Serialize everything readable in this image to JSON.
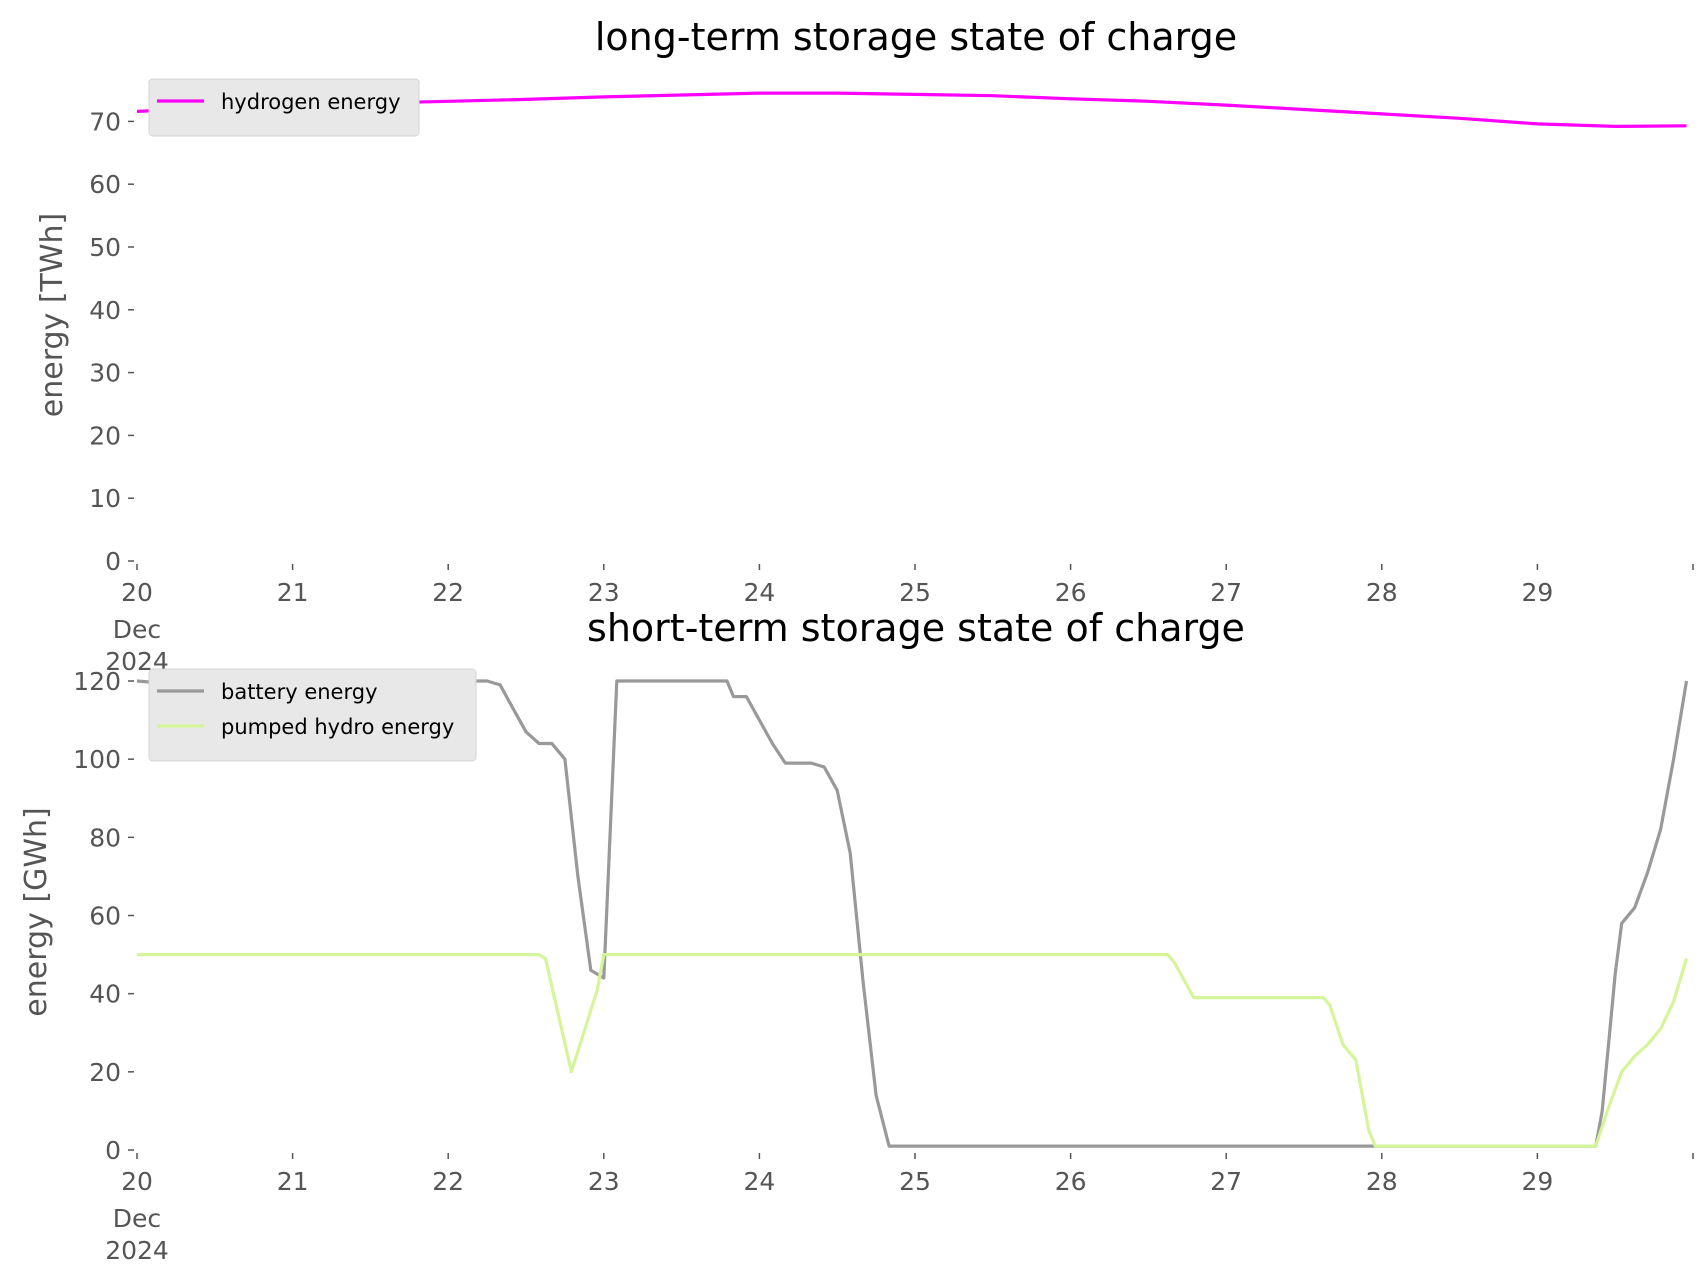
{
  "chart_data": [
    {
      "type": "line",
      "title": "long-term storage state of charge",
      "xlabel": "",
      "ylabel": "energy [TWh]",
      "x_tick_labels": [
        "20",
        "21",
        "22",
        "23",
        "24",
        "25",
        "26",
        "27",
        "28",
        "29"
      ],
      "x_tick_sublabels": [
        "Dec",
        "2024"
      ],
      "xlim": [
        "2024-12-20",
        "2024-12-30"
      ],
      "y_ticks": [
        0,
        10,
        20,
        30,
        40,
        50,
        60,
        70
      ],
      "ylim": [
        0,
        75
      ],
      "grid": false,
      "legend_position": "top-left",
      "series": [
        {
          "name": "hydrogen energy",
          "color": "#ff00ff",
          "x": [
            "2024-12-20 00:00",
            "2024-12-20 12:00",
            "2024-12-21 00:00",
            "2024-12-21 12:00",
            "2024-12-22 00:00",
            "2024-12-22 12:00",
            "2024-12-23 00:00",
            "2024-12-23 12:00",
            "2024-12-24 00:00",
            "2024-12-24 12:00",
            "2024-12-25 00:00",
            "2024-12-25 12:00",
            "2024-12-26 00:00",
            "2024-12-26 12:00",
            "2024-12-27 00:00",
            "2024-12-27 12:00",
            "2024-12-28 00:00",
            "2024-12-28 12:00",
            "2024-12-29 00:00",
            "2024-12-29 12:00",
            "2024-12-29 23:00"
          ],
          "y": [
            71.6,
            72.1,
            72.6,
            72.9,
            73.2,
            73.5,
            73.9,
            74.2,
            74.5,
            74.5,
            74.3,
            74.1,
            73.6,
            73.2,
            72.6,
            71.9,
            71.2,
            70.5,
            69.6,
            69.2,
            69.3
          ]
        }
      ]
    },
    {
      "type": "line",
      "title": "short-term storage state of charge",
      "xlabel": "",
      "ylabel": "energy [GWh]",
      "x_tick_labels": [
        "20",
        "21",
        "22",
        "23",
        "24",
        "25",
        "26",
        "27",
        "28",
        "29"
      ],
      "x_tick_sublabels": [
        "Dec",
        "2024"
      ],
      "xlim": [
        "2024-12-20",
        "2024-12-30"
      ],
      "y_ticks": [
        0,
        20,
        40,
        60,
        80,
        100,
        120
      ],
      "ylim": [
        0,
        120
      ],
      "grid": false,
      "legend_position": "top-left",
      "series": [
        {
          "name": "battery energy",
          "color": "#999999",
          "x": [
            "2024-12-20 00:00",
            "2024-12-21 12:00",
            "2024-12-21 20:00",
            "2024-12-21 22:00",
            "2024-12-22 00:00",
            "2024-12-22 06:00",
            "2024-12-22 08:00",
            "2024-12-22 10:00",
            "2024-12-22 12:00",
            "2024-12-22 14:00",
            "2024-12-22 16:00",
            "2024-12-22 18:00",
            "2024-12-22 20:00",
            "2024-12-22 22:00",
            "2024-12-23 00:00",
            "2024-12-23 02:00",
            "2024-12-23 04:00",
            "2024-12-23 06:00",
            "2024-12-23 08:00",
            "2024-12-23 12:00",
            "2024-12-23 19:00",
            "2024-12-23 20:00",
            "2024-12-23 22:00",
            "2024-12-24 00:00",
            "2024-12-24 02:00",
            "2024-12-24 04:00",
            "2024-12-24 06:00",
            "2024-12-24 08:00",
            "2024-12-24 10:00",
            "2024-12-24 12:00",
            "2024-12-24 14:00",
            "2024-12-24 16:00",
            "2024-12-24 18:00",
            "2024-12-24 20:00",
            "2024-12-24 22:00",
            "2024-12-25 00:00",
            "2024-12-25 06:00",
            "2024-12-25 18:00",
            "2024-12-26 12:00",
            "2024-12-27 12:00",
            "2024-12-28 12:00",
            "2024-12-29 08:00",
            "2024-12-29 09:00",
            "2024-12-29 10:00",
            "2024-12-29 12:00",
            "2024-12-29 13:00",
            "2024-12-29 15:00",
            "2024-12-29 17:00",
            "2024-12-29 19:00",
            "2024-12-29 21:00",
            "2024-12-29 23:00"
          ],
          "y": [
            120,
            115,
            115,
            117,
            120,
            120,
            119,
            113,
            107,
            104,
            104,
            100,
            70,
            46,
            44,
            120,
            120,
            120,
            120,
            120,
            120,
            116,
            116,
            110,
            104,
            99,
            99,
            99,
            98,
            92,
            76,
            43,
            14,
            1,
            1,
            1,
            1,
            1,
            1,
            1,
            1,
            1,
            1,
            10,
            45,
            58,
            62,
            71,
            82,
            100,
            120
          ]
        },
        {
          "name": "pumped hydro energy",
          "color": "#d4f59a",
          "x": [
            "2024-12-20 00:00",
            "2024-12-22 14:00",
            "2024-12-22 15:00",
            "2024-12-22 19:00",
            "2024-12-22 23:00",
            "2024-12-23 00:00",
            "2024-12-23 12:00",
            "2024-12-24 12:00",
            "2024-12-25 12:00",
            "2024-12-26 12:00",
            "2024-12-26 15:00",
            "2024-12-26 16:00",
            "2024-12-26 18:00",
            "2024-12-26 19:00",
            "2024-12-27 12:00",
            "2024-12-27 15:00",
            "2024-12-27 16:00",
            "2024-12-27 18:00",
            "2024-12-27 20:00",
            "2024-12-27 22:00",
            "2024-12-27 23:00",
            "2024-12-28 12:00",
            "2024-12-29 08:00",
            "2024-12-29 09:00",
            "2024-12-29 11:00",
            "2024-12-29 13:00",
            "2024-12-29 15:00",
            "2024-12-29 17:00",
            "2024-12-29 19:00",
            "2024-12-29 21:00",
            "2024-12-29 23:00"
          ],
          "y": [
            50,
            50,
            49,
            20,
            41,
            50,
            50,
            50,
            50,
            50,
            50,
            48,
            42,
            39,
            39,
            39,
            37,
            27,
            23,
            5,
            1,
            1,
            1,
            1,
            11,
            20,
            24,
            27,
            31,
            38,
            49
          ]
        }
      ]
    }
  ]
}
